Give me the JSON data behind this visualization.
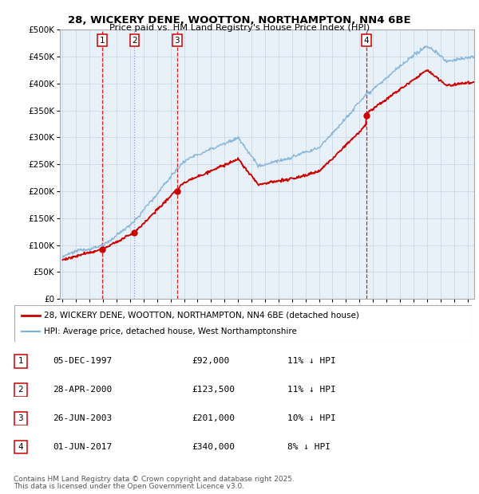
{
  "title1": "28, WICKERY DENE, WOOTTON, NORTHAMPTON, NN4 6BE",
  "title2": "Price paid vs. HM Land Registry's House Price Index (HPI)",
  "legend_line1": "28, WICKERY DENE, WOOTTON, NORTHAMPTON, NN4 6BE (detached house)",
  "legend_line2": "HPI: Average price, detached house, West Northamptonshire",
  "footer1": "Contains HM Land Registry data © Crown copyright and database right 2025.",
  "footer2": "This data is licensed under the Open Government Licence v3.0.",
  "transactions": [
    {
      "num": 1,
      "date": "05-DEC-1997",
      "price": 92000,
      "pct": "11% ↓ HPI",
      "x_year": 1997.92
    },
    {
      "num": 2,
      "date": "28-APR-2000",
      "price": 123500,
      "pct": "11% ↓ HPI",
      "x_year": 2000.33
    },
    {
      "num": 3,
      "date": "26-JUN-2003",
      "price": 201000,
      "pct": "10% ↓ HPI",
      "x_year": 2003.48
    },
    {
      "num": 4,
      "date": "01-JUN-2017",
      "price": 340000,
      "pct": "8% ↓ HPI",
      "x_year": 2017.5
    }
  ],
  "red_color": "#cc0000",
  "blue_color": "#7fb0d8",
  "plot_bg": "#e8f0f8",
  "grid_color": "#c8d8e8",
  "ylim": [
    0,
    500000
  ],
  "xlim_start": 1994.8,
  "xlim_end": 2025.5,
  "yticks": [
    0,
    50000,
    100000,
    150000,
    200000,
    250000,
    300000,
    350000,
    400000,
    450000,
    500000
  ],
  "xticks": [
    1995,
    1996,
    1997,
    1998,
    1999,
    2000,
    2001,
    2002,
    2003,
    2004,
    2005,
    2006,
    2007,
    2008,
    2009,
    2010,
    2011,
    2012,
    2013,
    2014,
    2015,
    2016,
    2017,
    2018,
    2019,
    2020,
    2021,
    2022,
    2023,
    2024,
    2025
  ]
}
